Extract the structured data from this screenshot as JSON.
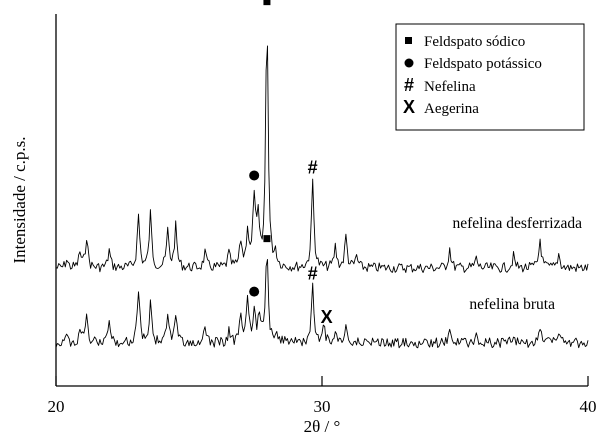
{
  "chart_data": {
    "type": "line",
    "title": "",
    "xlabel": "2θ / °",
    "ylabel": "Intensidade / c.p.s.",
    "xlim": [
      20,
      40
    ],
    "xticks": [
      "20",
      "30",
      "40"
    ],
    "grid": false,
    "legend_position": "top-right",
    "legend": [
      {
        "symbol": "square",
        "label": "Feldspato sódico"
      },
      {
        "symbol": "circle",
        "label": "Feldspato potássico"
      },
      {
        "symbol": "#",
        "label": "Nefelina"
      },
      {
        "symbol": "X",
        "label": "Aegerina"
      }
    ],
    "series": [
      {
        "name": "nefelina desferrizada",
        "baseline": 1.0,
        "peaks": [
          [
            20.4,
            0.07
          ],
          [
            20.9,
            0.13
          ],
          [
            21.15,
            0.27
          ],
          [
            22.0,
            0.15
          ],
          [
            23.1,
            0.45
          ],
          [
            23.55,
            0.46
          ],
          [
            24.2,
            0.31
          ],
          [
            24.5,
            0.35
          ],
          [
            25.6,
            0.13
          ],
          [
            26.5,
            0.12
          ],
          [
            26.95,
            0.22
          ],
          [
            27.2,
            0.32
          ],
          [
            27.45,
            0.61
          ],
          [
            27.6,
            0.38
          ],
          [
            27.93,
            2.18
          ],
          [
            28.25,
            0.12
          ],
          [
            29.65,
            0.75
          ],
          [
            30.5,
            0.18
          ],
          [
            30.9,
            0.27
          ],
          [
            31.3,
            0.1
          ],
          [
            34.8,
            0.17
          ],
          [
            35.8,
            0.08
          ],
          [
            37.2,
            0.1
          ],
          [
            38.2,
            0.25
          ],
          [
            38.9,
            0.12
          ]
        ]
      },
      {
        "name": "nefelina bruta",
        "baseline": 0.0,
        "peaks": [
          [
            20.4,
            0.05
          ],
          [
            20.9,
            0.12
          ],
          [
            21.15,
            0.2
          ],
          [
            22.0,
            0.2
          ],
          [
            23.1,
            0.47
          ],
          [
            23.55,
            0.34
          ],
          [
            24.2,
            0.24
          ],
          [
            24.5,
            0.23
          ],
          [
            25.6,
            0.11
          ],
          [
            26.5,
            0.1
          ],
          [
            26.95,
            0.25
          ],
          [
            27.2,
            0.34
          ],
          [
            27.45,
            0.3
          ],
          [
            27.65,
            0.25
          ],
          [
            27.93,
            0.79
          ],
          [
            28.3,
            0.1
          ],
          [
            29.65,
            0.48
          ],
          [
            30.05,
            0.17
          ],
          [
            30.5,
            0.12
          ],
          [
            30.9,
            0.13
          ],
          [
            34.8,
            0.12
          ],
          [
            35.8,
            0.07
          ],
          [
            37.2,
            0.08
          ],
          [
            38.2,
            0.14
          ],
          [
            38.9,
            0.1
          ]
        ]
      }
    ],
    "annotations": [
      {
        "symbol": "square",
        "x": 27.93,
        "series": "nefelina desferrizada"
      },
      {
        "symbol": "circle",
        "x": 27.45,
        "series": "nefelina desferrizada"
      },
      {
        "symbol": "#",
        "x": 29.65,
        "series": "nefelina desferrizada"
      },
      {
        "symbol": "square",
        "x": 27.93,
        "series": "nefelina bruta"
      },
      {
        "symbol": "circle",
        "x": 27.45,
        "series": "nefelina bruta"
      },
      {
        "symbol": "#",
        "x": 29.65,
        "series": "nefelina bruta"
      },
      {
        "symbol": "X",
        "x": 30.1,
        "series": "nefelina bruta"
      }
    ]
  }
}
